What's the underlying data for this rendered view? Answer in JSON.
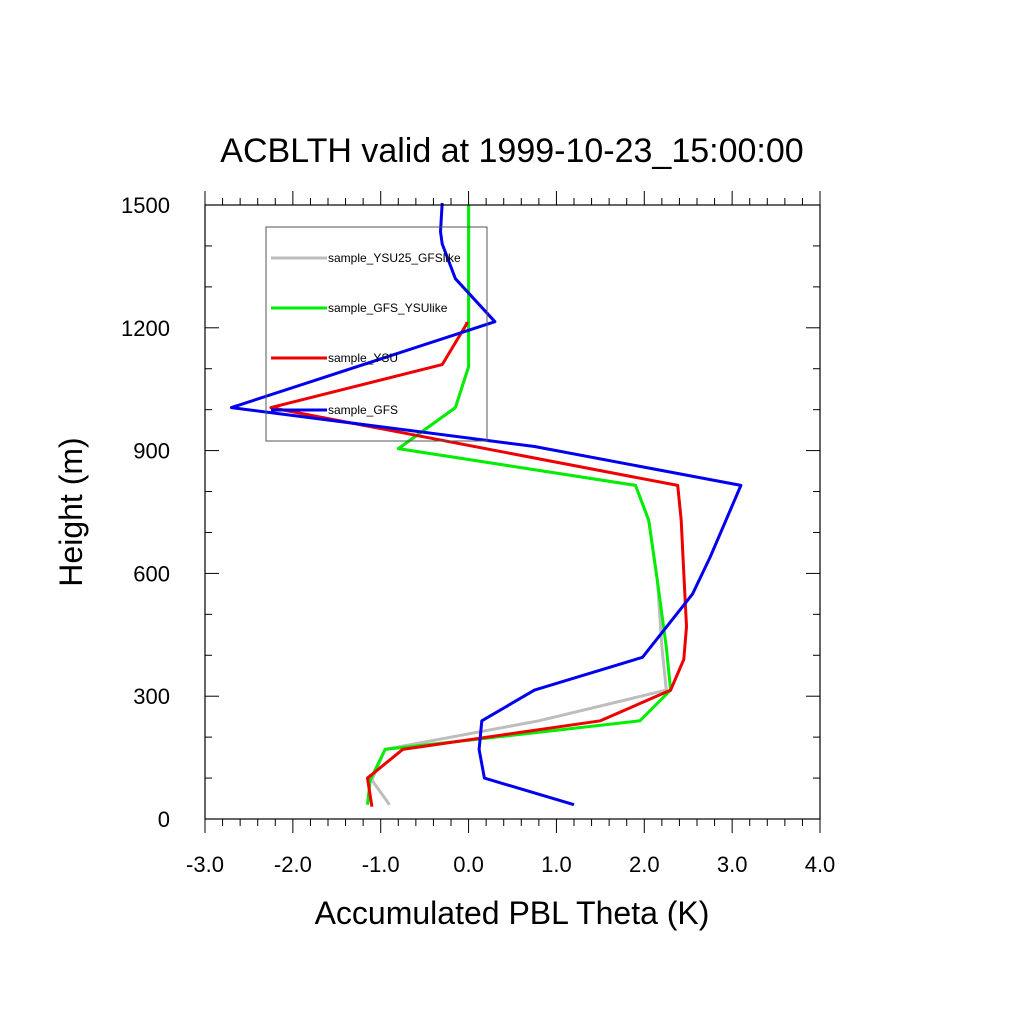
{
  "chart_data": {
    "type": "line",
    "title": "ACBLTH valid at 1999-10-23_15:00:00",
    "xlabel": "Accumulated PBL Theta (K)",
    "ylabel": "Height (m)",
    "xlim": [
      -3.0,
      4.0
    ],
    "ylim": [
      0,
      1500
    ],
    "xticks": [
      -3,
      -2,
      -1,
      0,
      1,
      2,
      3,
      4
    ],
    "xtick_labels": [
      "-3.0",
      "-2.0",
      "-1.0",
      "0.0",
      "1.0",
      "2.0",
      "3.0",
      "4.0"
    ],
    "yticks": [
      0,
      300,
      600,
      900,
      1200,
      1500
    ],
    "ytick_labels": [
      "0",
      "300",
      "600",
      "900",
      "1200",
      "1500"
    ],
    "grid": false,
    "legend_position": "top-left",
    "series": [
      {
        "name": "sample_YSU25_GFSlike",
        "color": "#bdbdbd",
        "x": [
          -0.9,
          -1.1,
          -0.95,
          0.8,
          2.25,
          2.2,
          2.15,
          2.05,
          1.9,
          -0.8,
          -0.15,
          0.0,
          0.0,
          0.0
        ],
        "y": [
          35,
          95,
          170,
          240,
          315,
          420,
          580,
          730,
          815,
          905,
          1005,
          1105,
          1200,
          1500
        ]
      },
      {
        "name": "sample_GFS_YSUlike",
        "color": "#00ee00",
        "x": [
          -1.15,
          -1.12,
          -0.95,
          0.1,
          1.95,
          2.3,
          2.25,
          2.15,
          2.05,
          1.9,
          -0.8,
          -0.15,
          0.0,
          0.0,
          0.0
        ],
        "y": [
          35,
          95,
          170,
          195,
          240,
          315,
          420,
          580,
          730,
          815,
          905,
          1005,
          1105,
          1200,
          1500
        ]
      },
      {
        "name": "sample_YSU",
        "color": "#ee0000",
        "x": [
          -1.1,
          -1.15,
          -0.75,
          1.5,
          2.3,
          2.45,
          2.48,
          2.45,
          2.42,
          2.38,
          -2.25,
          -0.3,
          -0.02,
          -0.02
        ],
        "y": [
          30,
          100,
          170,
          240,
          315,
          390,
          470,
          600,
          730,
          815,
          1005,
          1110,
          1210,
          1215
        ]
      },
      {
        "name": "sample_GFS",
        "color": "#0000ee",
        "x": [
          1.2,
          0.18,
          0.12,
          0.15,
          0.75,
          1.98,
          2.55,
          2.75,
          3.1,
          0.75,
          -2.7,
          0.3,
          -0.15,
          -0.3,
          -0.32,
          -0.3
        ],
        "y": [
          35,
          100,
          170,
          240,
          315,
          395,
          550,
          640,
          815,
          910,
          1005,
          1215,
          1320,
          1405,
          1435,
          1505
        ]
      }
    ]
  }
}
